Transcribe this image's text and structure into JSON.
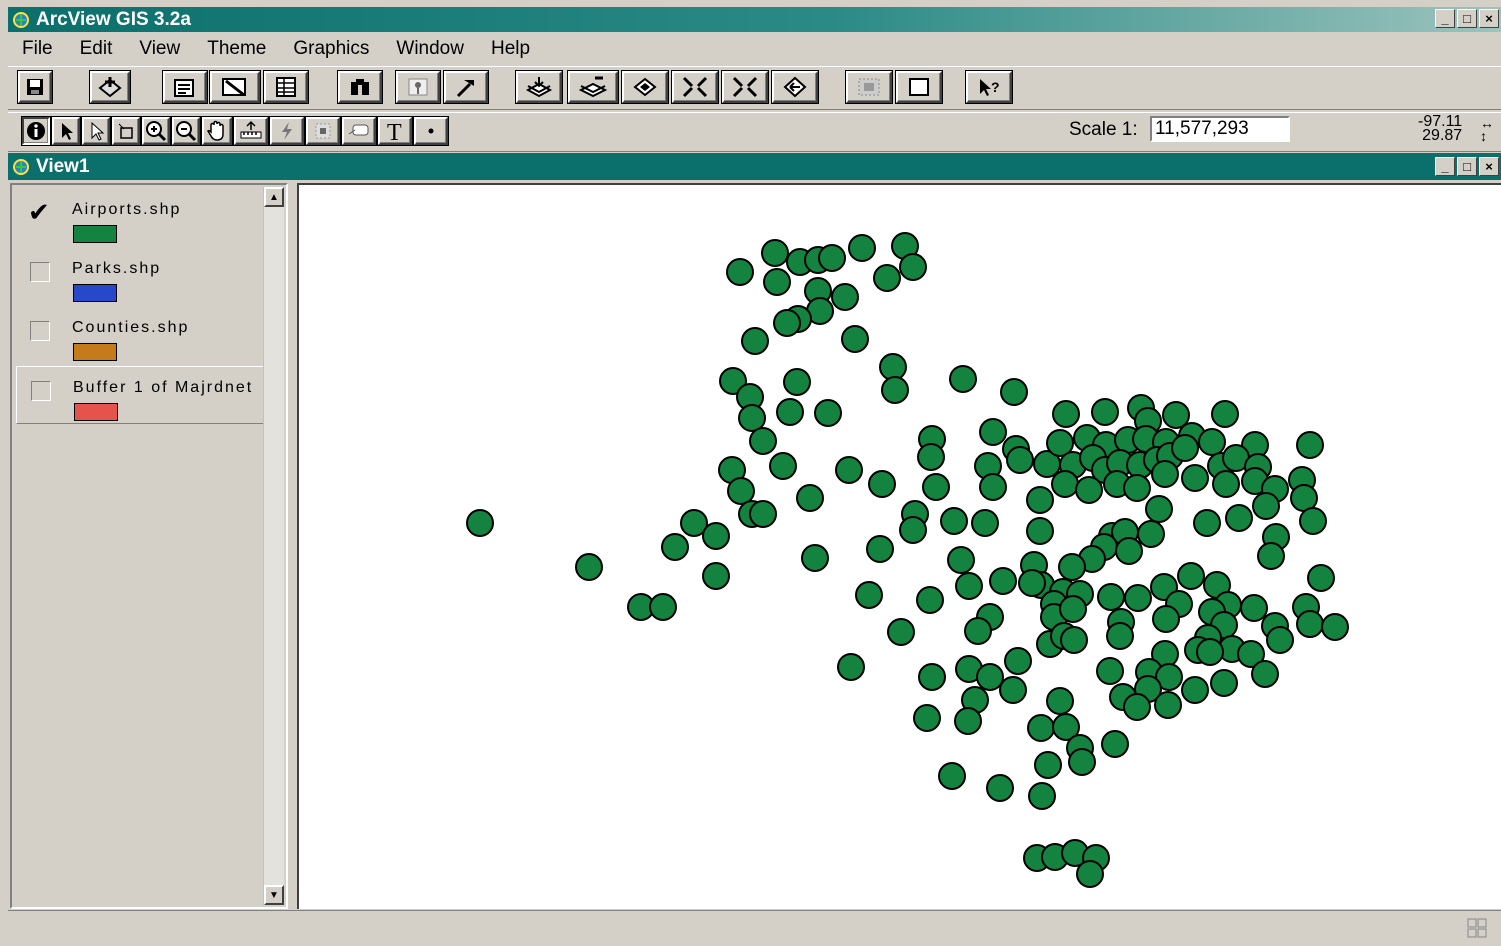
{
  "app": {
    "title": "ArcView GIS 3.2a"
  },
  "menu": [
    "File",
    "Edit",
    "View",
    "Theme",
    "Graphics",
    "Window",
    "Help"
  ],
  "view_window": {
    "title": "View1"
  },
  "scale": {
    "label": "Scale 1:",
    "value": "11,577,293"
  },
  "cursor_coords": {
    "x": "-97.11",
    "y": "29.87"
  },
  "legend": {
    "themes": [
      {
        "name": "Airports.shp",
        "checked": true,
        "color": "#13833f"
      },
      {
        "name": "Parks.shp",
        "checked": false,
        "color": "#2749c9"
      },
      {
        "name": "Counties.shp",
        "checked": false,
        "color": "#c57a1c"
      },
      {
        "name": "Buffer 1 of Majrdnet",
        "checked": false,
        "color": "#e5534b"
      }
    ]
  },
  "toolbar_buttons": [
    "save-icon",
    "add-theme-icon",
    "theme-properties-icon",
    "edit-legend-icon",
    "open-table-icon",
    "find-icon",
    "locate-address-icon",
    "query-builder-icon",
    "zoom-to-full-extent-icon",
    "zoom-to-active-themes-icon",
    "zoom-to-selected-icon",
    "zoom-in-icon",
    "zoom-out-icon",
    "zoom-previous-icon",
    "select-features-icon",
    "clear-selection-icon",
    "help-icon"
  ],
  "tools": [
    "identify-tool-icon",
    "pointer-tool-icon",
    "vertex-edit-tool-icon",
    "select-feature-tool-icon",
    "zoom-in-tool-icon",
    "zoom-out-tool-icon",
    "pan-tool-icon",
    "measure-tool-icon",
    "hot-link-tool-icon",
    "label-tool-icon",
    "callout-tool-icon",
    "text-tool-icon",
    "draw-point-tool-icon"
  ]
}
